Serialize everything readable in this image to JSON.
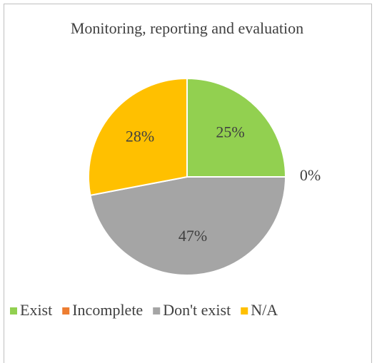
{
  "chart_data": {
    "type": "pie",
    "title": "Monitoring, reporting and evaluation",
    "categories": [
      "Exist",
      "Incomplete",
      "Don't exist",
      "N/A"
    ],
    "values": [
      25,
      0,
      47,
      28
    ],
    "value_labels": [
      "25%",
      "0%",
      "47%",
      "28%"
    ],
    "colors": [
      "#92d050",
      "#ed7d31",
      "#a5a5a5",
      "#ffc000"
    ],
    "legend": "bottom"
  }
}
